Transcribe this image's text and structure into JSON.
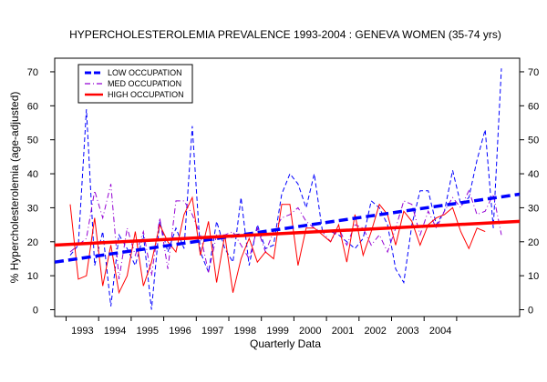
{
  "chart_data": {
    "type": "line",
    "title": "HYPERCHOLESTEROLEMIA PREVALENCE 1993-2004 : GENEVA WOMEN (35-74 yrs)",
    "xlabel": "Quarterly Data",
    "ylabel": "% Hypercholesterolemia  (age-adjusted)",
    "x_tick_labels": [
      "1993",
      "1994",
      "1995",
      "1996",
      "1997",
      "1998",
      "1999",
      "2000",
      "2001",
      "2002",
      "2003",
      "2004"
    ],
    "ylim": [
      -2,
      74
    ],
    "y_ticks": [
      0,
      10,
      20,
      30,
      40,
      50,
      60,
      70
    ],
    "y_tick_labels": [
      "0",
      "10",
      "20",
      "30",
      "40",
      "50",
      "60",
      "70"
    ],
    "right_axis_labels": true,
    "grid": false,
    "legend_position": "top-left",
    "series": [
      {
        "name": "LOW OCCUPATION",
        "color": "#0000ff",
        "dash": "dashed",
        "values": [
          16,
          19,
          59,
          13,
          23,
          1,
          22,
          18,
          13,
          22,
          0,
          26,
          17,
          24,
          18,
          54,
          17,
          11,
          26,
          18,
          14,
          33,
          13,
          25,
          18,
          19,
          34,
          40,
          37,
          30,
          40,
          23,
          23,
          22,
          20,
          18,
          21,
          32,
          30,
          25,
          12,
          8,
          25,
          35,
          35,
          25,
          29,
          41,
          31,
          33,
          44,
          53,
          24,
          71
        ],
        "trend": [
          14,
          34
        ]
      },
      {
        "name": "MED OCCUPATION",
        "color": "#9400d3",
        "dash": "dashdot",
        "values": [
          17,
          19,
          21,
          35,
          27,
          37,
          9,
          24,
          16,
          23,
          10,
          27,
          12,
          32,
          32,
          28,
          22,
          11,
          22,
          22,
          23,
          19,
          15,
          24,
          17,
          23,
          27,
          28,
          30,
          26,
          24,
          23,
          20,
          24,
          19,
          25,
          24,
          19,
          22,
          17,
          24,
          32,
          31,
          22,
          29,
          24,
          29,
          33,
          30,
          35,
          28,
          29,
          34,
          22
        ],
        "trend": null
      },
      {
        "name": "HIGH OCCUPATION",
        "color": "#ff0000",
        "dash": "solid",
        "values": [
          31,
          9,
          10,
          27,
          7,
          19,
          5,
          10,
          23,
          7,
          14,
          25,
          20,
          17,
          28,
          33,
          16,
          26,
          8,
          22,
          5,
          15,
          21,
          14,
          17,
          15,
          31,
          31,
          13,
          24,
          24,
          22,
          20,
          25,
          14,
          28,
          16,
          23,
          31,
          28,
          19,
          29,
          26,
          19,
          25,
          27,
          28,
          30,
          23,
          18,
          24,
          23
        ],
        "trend": [
          19,
          26
        ]
      }
    ]
  }
}
